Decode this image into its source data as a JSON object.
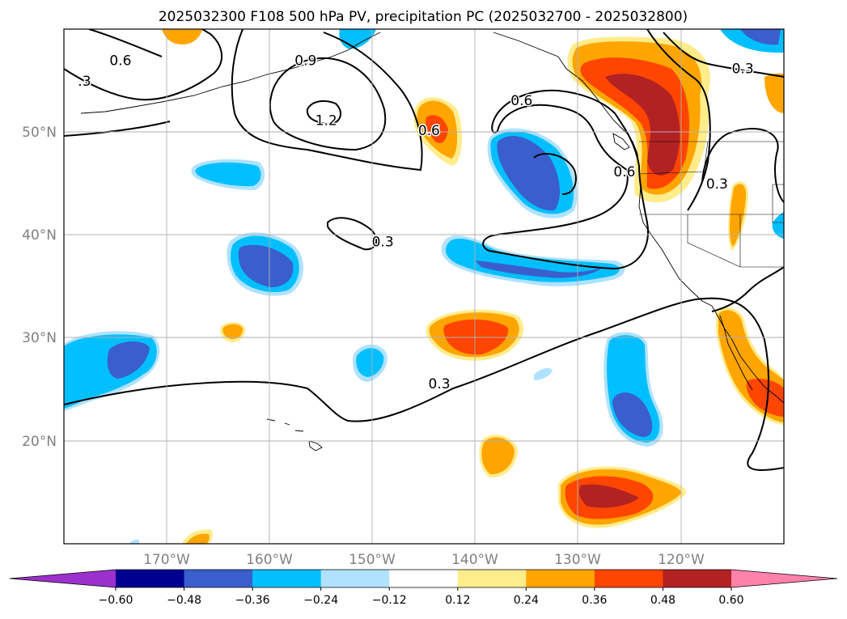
{
  "chart_data": {
    "type": "map-contour",
    "title": "2025032300 F108 500 hPa PV, precipitation PC (2025032700 - 2025032800)",
    "x_ticks": [
      "170°W",
      "160°W",
      "150°W",
      "140°W",
      "130°W",
      "120°W"
    ],
    "y_ticks": [
      "50°N",
      "40°N",
      "30°N",
      "20°N"
    ],
    "lon_range": [
      -180,
      -110
    ],
    "lat_range": [
      10,
      60
    ],
    "grid": true,
    "colorbar": {
      "ticks": [
        "−0.60",
        "−0.48",
        "−0.36",
        "−0.24",
        "−0.12",
        "0.12",
        "0.24",
        "0.36",
        "0.48",
        "0.60"
      ],
      "colors": [
        "#9b30cd",
        "#000090",
        "#3a5fcd",
        "#00bfff",
        "#b0e2ff",
        "#ffffff",
        "#ffec8b",
        "#ffa500",
        "#ff4500",
        "#b22222",
        "#ff82ab"
      ],
      "extend": "both"
    },
    "contour_labels": [
      {
        "text": "0.6",
        "lon": -174.5,
        "lat": 56.5
      },
      {
        "text": "0.9",
        "lon": -156.5,
        "lat": 56.5
      },
      {
        "text": "1.2",
        "lon": -154.5,
        "lat": 50.7
      },
      {
        "text": "0.6",
        "lon": -135.5,
        "lat": 52.6
      },
      {
        "text": "0.6",
        "lon": -125.5,
        "lat": 45.7
      },
      {
        "text": "0.3",
        "lon": -114,
        "lat": 55.7
      },
      {
        "text": "0.3",
        "lon": -116.5,
        "lat": 44.5
      },
      {
        "text": "0.3",
        "lon": -149,
        "lat": 38.9
      },
      {
        "text": "0.3",
        "lon": -143.5,
        "lat": 25.1
      },
      {
        "text": ".3",
        "lon": -178,
        "lat": 54.5
      },
      {
        "text": "0.6",
        "lon": -144.5,
        "lat": 49.7
      }
    ]
  }
}
